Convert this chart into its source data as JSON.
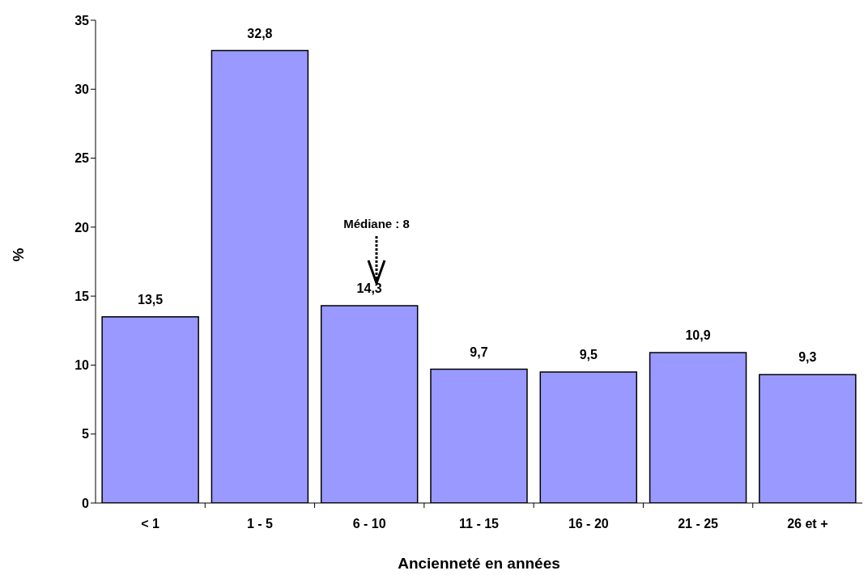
{
  "chart_data": {
    "type": "bar",
    "xlabel": "Ancienneté en années",
    "ylabel": "%",
    "categories": [
      "< 1",
      "1 - 5",
      "6 - 10",
      "11 - 15",
      "16 - 20",
      "21 - 25",
      "26 et +"
    ],
    "values": [
      13.5,
      32.8,
      14.3,
      9.7,
      9.5,
      10.9,
      9.3
    ],
    "value_labels": [
      "13,5",
      "32,8",
      "14,3",
      "9,7",
      "9,5",
      "10,9",
      "9,3"
    ],
    "color": "#9999ff",
    "ylim": [
      0,
      35
    ],
    "yticks": [
      0,
      5,
      10,
      15,
      20,
      25,
      30,
      35
    ],
    "annotations": [
      "Médiane : 8"
    ]
  }
}
